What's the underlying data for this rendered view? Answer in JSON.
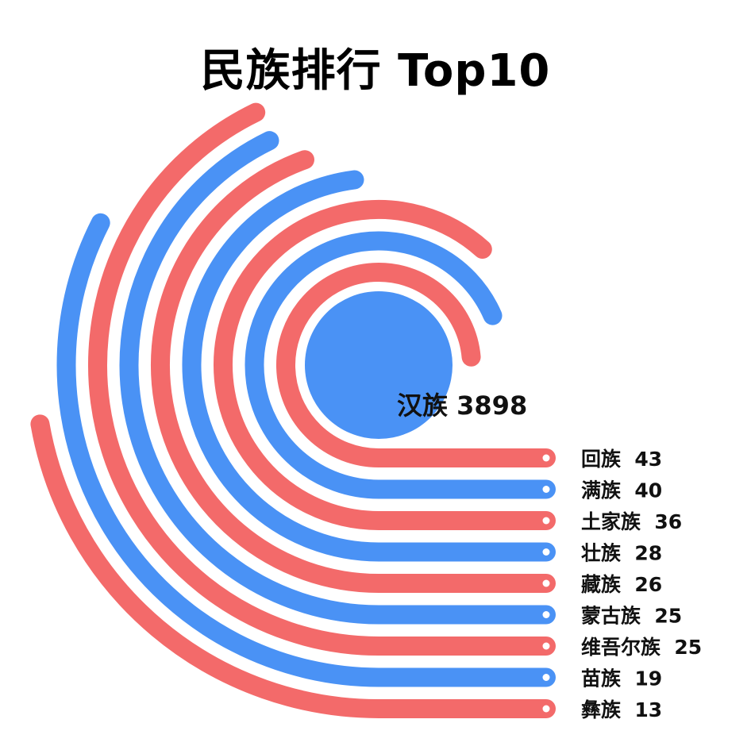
{
  "title": "民族排行 Top10",
  "colors": {
    "red": "#f36a6a",
    "blue": "#4a92f5"
  },
  "chart_data": {
    "type": "radial-bar",
    "title": "民族排行 Top10",
    "categories": [
      "汉族",
      "回族",
      "满族",
      "土家族",
      "壮族",
      "藏族",
      "蒙古族",
      "维吾尔族",
      "苗族",
      "彝族"
    ],
    "values": [
      3898,
      43,
      40,
      36,
      28,
      26,
      25,
      25,
      19,
      13
    ],
    "labels": [
      "汉族 3898",
      "回族  43",
      "满族  40",
      "土家族  36",
      "壮族  28",
      "藏族  26",
      "蒙古族  25",
      "维吾尔族  25",
      "苗族  19",
      "彝族  13"
    ]
  }
}
